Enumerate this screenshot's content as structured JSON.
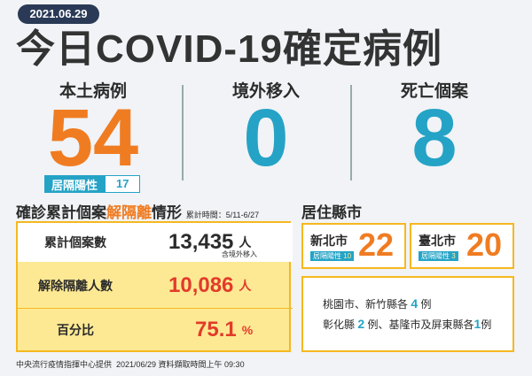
{
  "header": {
    "date": "2021.06.29",
    "title": "今日COVID-19確定病例"
  },
  "stats": [
    {
      "label": "本土病例",
      "value": "54",
      "sub_label": "居隔陽性",
      "sub_value": "17"
    },
    {
      "label": "境外移入",
      "value": "0"
    },
    {
      "label": "死亡個案",
      "value": "8"
    }
  ],
  "cumulative": {
    "title_parts": [
      "確診累計個案",
      "解隔離",
      "情形"
    ],
    "period": "累計時間：5/11-6/27",
    "rows": [
      {
        "label": "累計個案數",
        "value": "13,435",
        "unit": "人",
        "note": "含境外移入"
      },
      {
        "label": "解除隔離人數",
        "value": "10,086",
        "unit": "人"
      },
      {
        "label": "百分比",
        "value": "75.1",
        "unit": "%"
      }
    ]
  },
  "residence": {
    "title": "居住縣市",
    "cities": [
      {
        "name": "新北市",
        "value": "22",
        "sub_label": "居隔陽性",
        "sub_value": "10"
      },
      {
        "name": "臺北市",
        "value": "20",
        "sub_label": "居隔陽性",
        "sub_value": "3"
      }
    ],
    "lines": [
      [
        "桃園市、新竹縣各",
        "4",
        "例"
      ],
      [
        "彰化縣",
        "2",
        "例、基隆市及屏東縣各",
        "1",
        "例"
      ]
    ]
  },
  "footer": "中央流行疫情指揮中心提供  2021/06/29 資料擷取時間上午 09:30"
}
